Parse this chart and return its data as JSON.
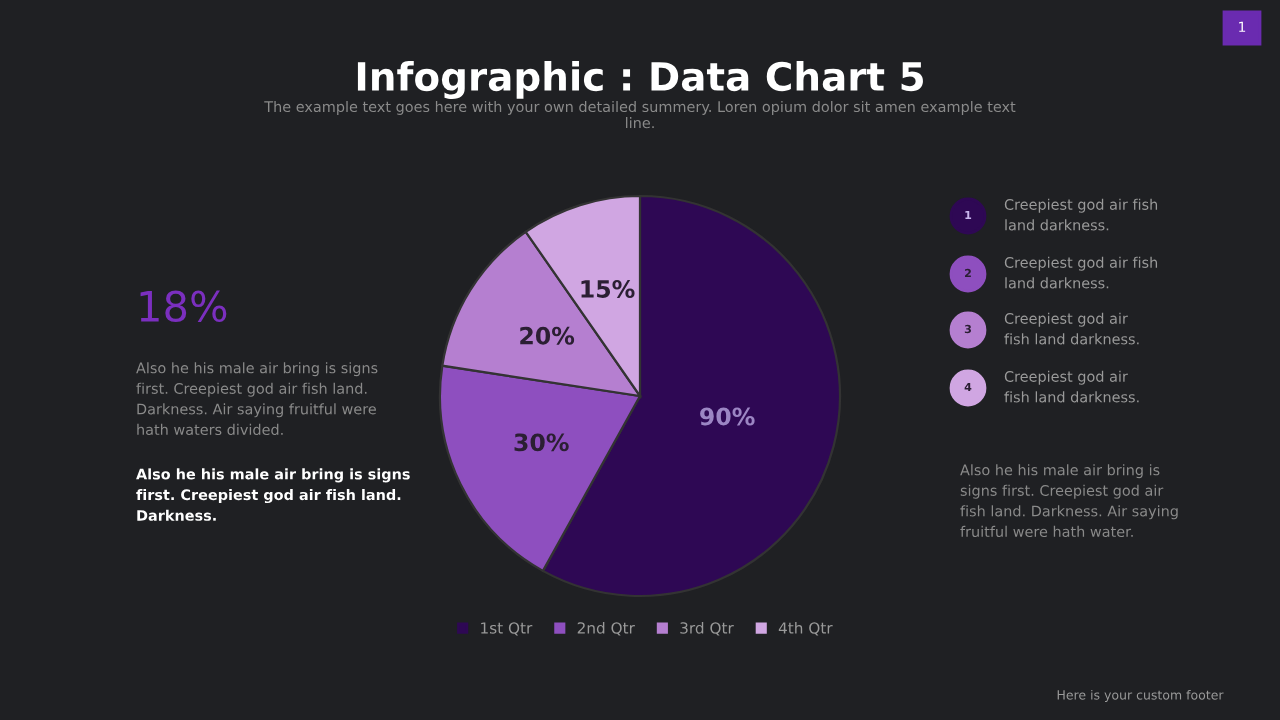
{
  "chart_data": {
    "type": "pie",
    "title": "Infographic : Data Chart 5",
    "subtitle": "The example text goes here with your own detailed summery. Loren opium dolor sit amen example text\nline.",
    "categories": [
      "1st Qtr",
      "2nd Qtr",
      "3rd Qtr",
      "4th Qtr"
    ],
    "values": [
      90,
      30,
      20,
      15
    ],
    "colors": [
      "#2e0854",
      "#8e4fbf",
      "#b57fd0",
      "#d0a6e2"
    ],
    "value_labels": [
      "90%",
      "30%",
      "20%",
      "15%"
    ],
    "legend": "bottom",
    "annotations": [
      "1",
      "18%",
      "Also he his male air bring is signs\nfirst. Creepiest god air fish land.\nDarkness. Air saying fruitful were\nhath waters divided.",
      "Also he his male air bring is signs\nfirst. Creepiest god air fish land.\nDarkness.",
      "1",
      "Creepiest god air fish\nland darkness.",
      "2",
      "Creepiest god air fish\nland darkness.",
      "3",
      "Creepiest god air\nfish land darkness.",
      "4",
      "Creepiest god air\nfish land darkness.",
      "Also he his male air bring is\nsigns first. Creepiest god air\nfish land. Darkness. Air saying\nfruitful were hath water.",
      "Here is your custom footer"
    ]
  }
}
